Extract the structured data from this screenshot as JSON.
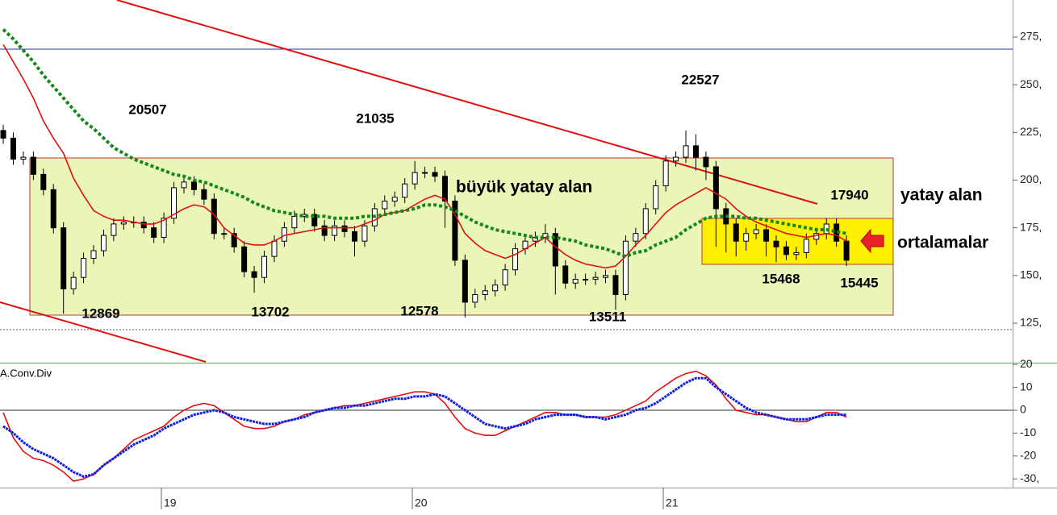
{
  "chart_data": [
    {
      "type": "candlestick",
      "x": [
        18.37,
        18.41,
        18.45,
        18.49,
        18.53,
        18.57,
        18.61,
        18.65,
        18.69,
        18.73,
        18.77,
        18.81,
        18.85,
        18.89,
        18.93,
        18.97,
        19.01,
        19.05,
        19.09,
        19.13,
        19.17,
        19.21,
        19.25,
        19.29,
        19.33,
        19.37,
        19.41,
        19.45,
        19.49,
        19.53,
        19.57,
        19.61,
        19.65,
        19.69,
        19.73,
        19.77,
        19.81,
        19.85,
        19.89,
        19.93,
        19.97,
        20.01,
        20.05,
        20.09,
        20.13,
        20.17,
        20.21,
        20.25,
        20.29,
        20.33,
        20.37,
        20.41,
        20.45,
        20.49,
        20.53,
        20.57,
        20.61,
        20.65,
        20.69,
        20.73,
        20.77,
        20.81,
        20.85,
        20.89,
        20.93,
        20.97,
        21.01,
        21.05,
        21.09,
        21.13,
        21.17,
        21.21,
        21.25,
        21.29,
        21.33,
        21.37,
        21.41,
        21.45,
        21.49,
        21.53,
        21.57,
        21.61,
        21.65,
        21.69,
        21.73
      ],
      "open": [
        226,
        222,
        211,
        212,
        203,
        195,
        175,
        143,
        149,
        159,
        163,
        171,
        177,
        178,
        178,
        175,
        170,
        180,
        196,
        199,
        195,
        190,
        172,
        172,
        165,
        152,
        149,
        160,
        168,
        175,
        181,
        182,
        176,
        171,
        176,
        173,
        168,
        176,
        185,
        189,
        191,
        198,
        204,
        204,
        202,
        189,
        158,
        136,
        140,
        142,
        145,
        153,
        164,
        168,
        170,
        172,
        155,
        146,
        148,
        148,
        149,
        150,
        140,
        168,
        172,
        185,
        197,
        210,
        212,
        218,
        212,
        207,
        185,
        177,
        168,
        172,
        174,
        168,
        165,
        161,
        162,
        169,
        172,
        177,
        168
      ],
      "high": [
        229,
        225,
        215,
        215,
        206,
        198,
        178,
        152,
        162,
        166,
        174,
        180,
        181,
        181,
        181,
        178,
        183,
        199,
        202,
        202,
        198,
        193,
        175,
        175,
        168,
        155,
        163,
        171,
        178,
        184,
        185,
        185,
        179,
        179,
        179,
        176,
        179,
        188,
        192,
        194,
        201,
        210,
        207,
        207,
        205,
        192,
        161,
        143,
        145,
        148,
        156,
        167,
        171,
        173,
        177,
        175,
        158,
        151,
        151,
        152,
        153,
        153,
        171,
        175,
        188,
        200,
        213,
        215,
        226,
        224,
        215,
        210,
        188,
        180,
        175,
        177,
        177,
        171,
        168,
        165,
        172,
        175,
        180,
        180,
        171
      ],
      "low": [
        219,
        208,
        208,
        200,
        192,
        172,
        130,
        140,
        146,
        156,
        160,
        168,
        174,
        175,
        172,
        167,
        167,
        177,
        193,
        192,
        187,
        169,
        169,
        162,
        149,
        141,
        146,
        157,
        165,
        172,
        178,
        173,
        168,
        168,
        170,
        160,
        165,
        173,
        182,
        186,
        188,
        195,
        201,
        199,
        175,
        155,
        128,
        133,
        137,
        139,
        142,
        150,
        161,
        165,
        167,
        140,
        143,
        143,
        145,
        145,
        146,
        132,
        137,
        165,
        169,
        182,
        194,
        207,
        209,
        205,
        200,
        165,
        162,
        160,
        163,
        169,
        160,
        157,
        158,
        158,
        159,
        166,
        169,
        165,
        155
      ],
      "close": [
        222,
        211,
        212,
        203,
        195,
        175,
        143,
        149,
        159,
        163,
        171,
        177,
        178,
        178,
        175,
        170,
        180,
        196,
        199,
        195,
        190,
        172,
        172,
        165,
        152,
        149,
        160,
        168,
        175,
        181,
        182,
        176,
        171,
        176,
        173,
        168,
        176,
        185,
        189,
        191,
        198,
        204,
        204,
        202,
        189,
        158,
        136,
        140,
        142,
        145,
        153,
        164,
        168,
        170,
        172,
        155,
        146,
        148,
        148,
        149,
        150,
        140,
        168,
        172,
        185,
        197,
        210,
        212,
        218,
        212,
        207,
        185,
        177,
        168,
        172,
        174,
        168,
        165,
        161,
        162,
        169,
        172,
        177,
        168,
        158
      ],
      "series": [
        {
          "color": "#e01010",
          "values": [
            271,
            262,
            253,
            243,
            231,
            222,
            214,
            201,
            192,
            184,
            181,
            179,
            179,
            178,
            177,
            177,
            179,
            182,
            185,
            187,
            186,
            182,
            175,
            171,
            167,
            166,
            166,
            168,
            171,
            172,
            173,
            174,
            175,
            175,
            175,
            175,
            177,
            179,
            182,
            183,
            184,
            187,
            190,
            192,
            190,
            182,
            172,
            167,
            163,
            161,
            159,
            161,
            164,
            167,
            170,
            165,
            161,
            158,
            156,
            155,
            154,
            155,
            160,
            166,
            171,
            177,
            183,
            187,
            190,
            193,
            196,
            193,
            190,
            185,
            181,
            178,
            176,
            174,
            172,
            171,
            170,
            171,
            172,
            171,
            168
          ]
        },
        {
          "color": "#14881a",
          "style": "dotted",
          "values": [
            279,
            274,
            268,
            262,
            255,
            249,
            243,
            237,
            231,
            227,
            222,
            217,
            214,
            211,
            209,
            207,
            205,
            203,
            202,
            200,
            199,
            197,
            195,
            193,
            191,
            188,
            186,
            184,
            183,
            182,
            181,
            181,
            181,
            180,
            180,
            180,
            181,
            181,
            182,
            183,
            184,
            185,
            187,
            187,
            186,
            184,
            181,
            178,
            176,
            174,
            173,
            172,
            171,
            170,
            170,
            170,
            169,
            168,
            166,
            165,
            164,
            162,
            160,
            162,
            163,
            166,
            168,
            170,
            174,
            177,
            180,
            181,
            181,
            181,
            180,
            180,
            179,
            178,
            177,
            176,
            175,
            174,
            174,
            173,
            172
          ]
        }
      ],
      "xlim": [
        18.357,
        22.392
      ],
      "xticks": [
        19,
        20,
        21
      ],
      "ylim": [
        104.3,
        294.4
      ],
      "yticks": [
        {
          "value": 125,
          "label": "125,"
        },
        {
          "value": 150,
          "label": "150,"
        },
        {
          "value": 175,
          "label": "175,"
        },
        {
          "value": 200,
          "label": "200,"
        },
        {
          "value": 225,
          "label": "225,"
        },
        {
          "value": 250,
          "label": "250,"
        },
        {
          "value": 275,
          "label": "275,"
        }
      ],
      "annotations": [
        "20507",
        "21035",
        "22527",
        "büyük yatay alan",
        "17940",
        "yatay alan",
        "ortalamalar",
        "12869",
        "13702",
        "12578",
        "13511",
        "15468",
        "15445"
      ]
    },
    {
      "type": "line",
      "title": "A.Conv.Div",
      "series": [
        {
          "color": "#e01010",
          "values": [
            -1,
            -12,
            -18,
            -21,
            -22,
            -24,
            -27,
            -31,
            -30,
            -28,
            -24,
            -21,
            -17,
            -13,
            -11,
            -9,
            -7,
            -3,
            0,
            2,
            3,
            2,
            -1,
            -4,
            -7,
            -8,
            -8,
            -7,
            -5,
            -4,
            -2,
            -1,
            0,
            1,
            2,
            2,
            3,
            4,
            5,
            6,
            7,
            8,
            8,
            7,
            3,
            -3,
            -8,
            -10,
            -11,
            -11,
            -9,
            -7,
            -5,
            -3,
            -1,
            -1,
            -2,
            -2,
            -3,
            -3,
            -3,
            -2,
            0,
            2,
            4,
            8,
            11,
            14,
            16,
            17,
            15,
            11,
            5,
            0,
            -1,
            -2,
            -2,
            -3,
            -4,
            -5,
            -5,
            -3,
            -1,
            -1,
            -3
          ]
        },
        {
          "color": "#1020e0",
          "width": 3,
          "values": [
            -7,
            -10,
            -14,
            -17,
            -19,
            -21,
            -24,
            -27,
            -29,
            -28,
            -24,
            -21,
            -18,
            -15,
            -13,
            -11,
            -8,
            -6,
            -4,
            -2,
            -1,
            0,
            -1,
            -3,
            -4,
            -5,
            -6,
            -6,
            -5,
            -4,
            -3,
            -1,
            0,
            1,
            1,
            2,
            2,
            3,
            4,
            5,
            5,
            6,
            6,
            7,
            6,
            3,
            0,
            -3,
            -6,
            -7,
            -8,
            -7,
            -6,
            -4,
            -3,
            -2,
            -2,
            -2,
            -3,
            -3,
            -4,
            -3,
            -2,
            0,
            1,
            3,
            6,
            9,
            12,
            14,
            14,
            10,
            7,
            4,
            1,
            -1,
            -2,
            -3,
            -4,
            -4,
            -4,
            -3,
            -2,
            -2,
            -2
          ]
        }
      ],
      "ylim": [
        -33.8,
        20.4
      ],
      "yticks": [
        20,
        10,
        0,
        -10,
        -20,
        {
          "value": -30,
          "label": "-30,"
        }
      ],
      "zero_line": true
    }
  ]
}
